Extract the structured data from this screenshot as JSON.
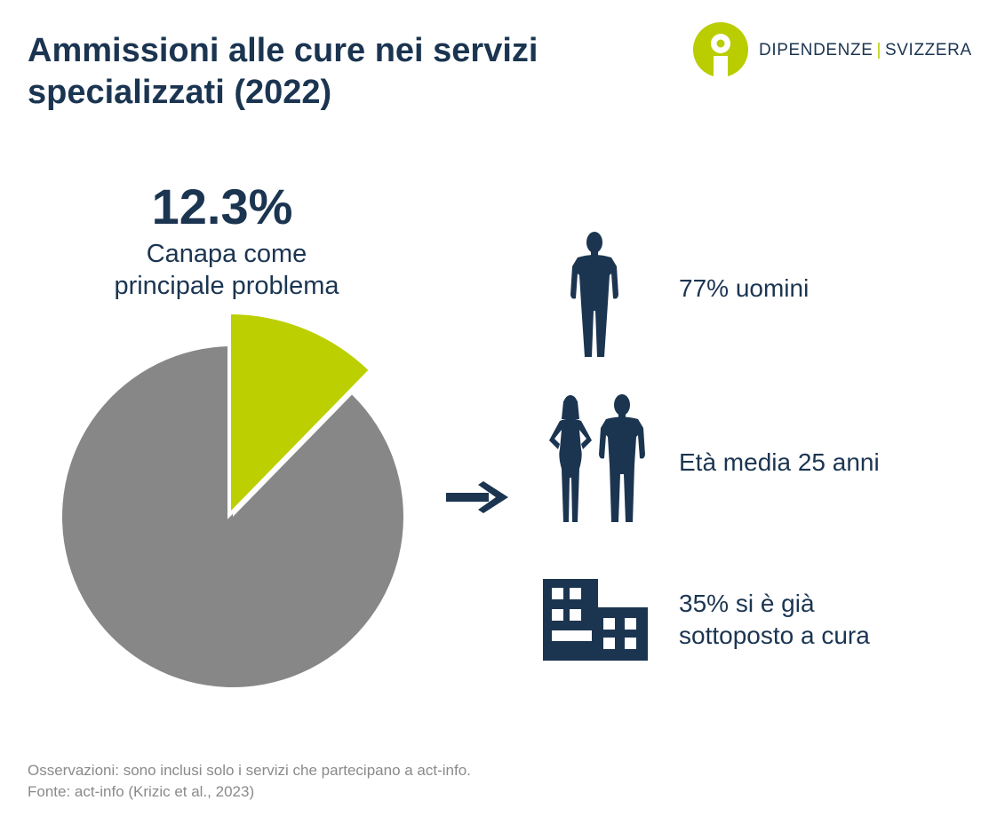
{
  "header": {
    "title_line1": "Ammissioni alle cure nei servizi",
    "title_line2": "specializzati (2022)"
  },
  "logo": {
    "name_part1": "DIPENDENZE",
    "separator": "|",
    "name_part2": "SVIZZERA",
    "colors": {
      "accent": "#b9cd00",
      "text": "#1b3551"
    }
  },
  "chart_data": {
    "type": "pie",
    "slices": [
      {
        "value": 12.3,
        "color": "#bccf00",
        "exploded": true
      },
      {
        "value": 87.7,
        "color": "#878787",
        "exploded": false
      }
    ],
    "headline_value": "12.3%",
    "headline_label_line1": "Canapa come",
    "headline_label_line2": "principale problema"
  },
  "stats": {
    "men": {
      "text": "77% uomini",
      "icon": "man-silhouette-icon"
    },
    "age": {
      "text": "Età media 25 anni",
      "icon": "couple-silhouette-icon"
    },
    "prior_care": {
      "text_line1": "35% si è già",
      "text_line2": "sottoposto a cura",
      "icon": "building-icon"
    },
    "arrow_icon": "arrow-right-icon"
  },
  "footnote": {
    "line1": "Osservazioni: sono inclusi solo i servizi che partecipano a act-info.",
    "line2": "Fonte: act-info (Krizic et al., 2023)"
  },
  "colors": {
    "navy": "#1b3551",
    "lime": "#bccf00",
    "grey": "#878787",
    "muted": "#8a8a8a"
  }
}
